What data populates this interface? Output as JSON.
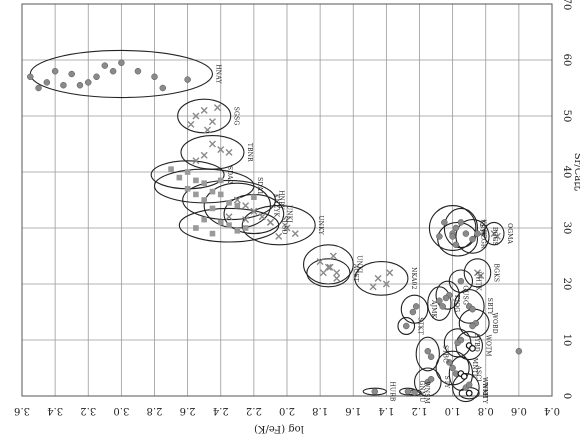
{
  "chart_data": {
    "type": "scatter",
    "title": "",
    "xlabel": "log (Fe/K)",
    "ylabel": "Sr/Ca比",
    "xlim": [
      3.6,
      0.4
    ],
    "ylim": [
      0,
      70
    ],
    "grid": true,
    "x_ticks": [
      "3.6",
      "3.4",
      "3.2",
      "3.0",
      "2.8",
      "2.6",
      "2.4",
      "2.2",
      "2.0",
      "1.8",
      "1.6",
      "1.4",
      "1.2",
      "1.0",
      "0.8",
      "0.6",
      "0.4"
    ],
    "y_ticks": [
      "0",
      "10",
      "20",
      "30",
      "40",
      "50",
      "60",
      "70"
    ],
    "groups": [
      {
        "label": "HNAY",
        "cx": 3.0,
        "cy": 57.5,
        "rx": 0.55,
        "ry": 4.2,
        "marker": "dot",
        "points": [
          [
            3.55,
            57
          ],
          [
            3.45,
            56
          ],
          [
            3.4,
            58
          ],
          [
            3.35,
            55.5
          ],
          [
            3.3,
            57.5
          ],
          [
            3.2,
            56
          ],
          [
            3.15,
            57
          ],
          [
            3.1,
            59
          ],
          [
            3.05,
            58
          ],
          [
            3.0,
            59.5
          ],
          [
            2.9,
            58
          ],
          [
            2.8,
            57
          ],
          [
            2.75,
            55
          ],
          [
            2.6,
            56.5
          ],
          [
            3.5,
            55
          ],
          [
            3.25,
            55.5
          ]
        ]
      },
      {
        "label": "SGSG",
        "cx": 2.5,
        "cy": 50.0,
        "rx": 0.16,
        "ry": 3.0,
        "marker": "x",
        "points": [
          [
            2.55,
            50
          ],
          [
            2.5,
            51
          ],
          [
            2.45,
            49
          ],
          [
            2.42,
            51.5
          ],
          [
            2.58,
            48.5
          ],
          [
            2.48,
            47.5
          ]
        ]
      },
      {
        "label": "TBNR",
        "cx": 2.45,
        "cy": 43.5,
        "rx": 0.19,
        "ry": 3.0,
        "marker": "x",
        "points": [
          [
            2.5,
            43
          ],
          [
            2.4,
            44
          ],
          [
            2.45,
            45
          ],
          [
            2.55,
            42
          ],
          [
            2.35,
            43.5
          ]
        ]
      },
      {
        "label": "SDA2",
        "cx": 2.6,
        "cy": 39.5,
        "rx": 0.22,
        "ry": 2.5,
        "marker": "square",
        "points": [
          [
            2.65,
            39
          ],
          [
            2.6,
            40
          ],
          [
            2.55,
            38.5
          ],
          [
            2.7,
            40.5
          ]
        ]
      },
      {
        "label": "SDA1",
        "cx": 2.5,
        "cy": 37.5,
        "rx": 0.3,
        "ry": 3.0,
        "marker": "square",
        "points": [
          [
            2.6,
            37
          ],
          [
            2.5,
            38
          ],
          [
            2.45,
            36.5
          ],
          [
            2.55,
            36
          ],
          [
            2.4,
            38.5
          ]
        ]
      },
      {
        "label": "HNRY",
        "cx": 2.35,
        "cy": 35.0,
        "rx": 0.28,
        "ry": 3.5,
        "marker": "square",
        "points": [
          [
            2.5,
            35
          ],
          [
            2.4,
            36
          ],
          [
            2.3,
            34
          ],
          [
            2.45,
            33.5
          ],
          [
            2.35,
            34.5
          ],
          [
            2.2,
            35.5
          ]
        ]
      },
      {
        "label": "SDSD",
        "cx": 2.35,
        "cy": 30.5,
        "rx": 0.3,
        "ry": 3.0,
        "marker": "square",
        "points": [
          [
            2.55,
            30
          ],
          [
            2.45,
            29
          ],
          [
            2.35,
            30.5
          ],
          [
            2.3,
            29.5
          ],
          [
            2.4,
            31
          ],
          [
            2.5,
            31.5
          ],
          [
            2.25,
            30
          ]
        ]
      },
      {
        "label": "KNZYK",
        "cx": 2.3,
        "cy": 34.0,
        "rx": 0.2,
        "ry": 4.0,
        "marker": "x",
        "points": [
          [
            2.3,
            35
          ],
          [
            2.25,
            34
          ],
          [
            2.2,
            33
          ],
          [
            2.35,
            32
          ]
        ]
      },
      {
        "label": "UNKJ",
        "cx": 2.2,
        "cy": 32.5,
        "rx": 0.18,
        "ry": 3.5,
        "marker": "x",
        "points": [
          [
            2.2,
            33
          ],
          [
            2.15,
            32
          ],
          [
            2.1,
            31
          ],
          [
            2.25,
            31.5
          ]
        ]
      },
      {
        "label": "UNKY",
        "cx": 2.05,
        "cy": 30.5,
        "rx": 0.22,
        "ry": 3.5,
        "marker": "x",
        "points": [
          [
            2.1,
            31
          ],
          [
            2.0,
            30
          ],
          [
            1.95,
            29
          ],
          [
            2.05,
            28.5
          ]
        ]
      },
      {
        "label": "UNKI",
        "cx": 1.75,
        "cy": 23.5,
        "rx": 0.15,
        "ry": 3.5,
        "marker": "x",
        "points": [
          [
            1.8,
            24
          ],
          [
            1.75,
            23
          ],
          [
            1.7,
            22
          ],
          [
            1.72,
            25
          ]
        ]
      },
      {
        "label": "ACST",
        "cx": 1.75,
        "cy": 22.0,
        "rx": 0.13,
        "ry": 2.5,
        "marker": "x",
        "points": [
          [
            1.78,
            22
          ],
          [
            1.7,
            21
          ],
          [
            1.74,
            23
          ]
        ]
      },
      {
        "label": "NKA02",
        "cx": 1.43,
        "cy": 21.0,
        "rx": 0.16,
        "ry": 3.0,
        "marker": "x",
        "points": [
          [
            1.45,
            21
          ],
          [
            1.4,
            20
          ],
          [
            1.38,
            22
          ],
          [
            1.48,
            19.5
          ]
        ]
      },
      {
        "label": "TSTY",
        "cx": 1.0,
        "cy": 30.0,
        "rx": 0.14,
        "ry": 4.0,
        "marker": "dot",
        "points": [
          [
            1.05,
            31
          ],
          [
            1.0,
            29
          ],
          [
            0.98,
            30
          ],
          [
            1.08,
            28.5
          ]
        ]
      },
      {
        "label": "KJNK",
        "cx": 0.95,
        "cy": 30.0,
        "rx": 0.1,
        "ry": 3.5,
        "marker": "dot",
        "points": [
          [
            0.95,
            31
          ],
          [
            0.92,
            29
          ]
        ]
      },
      {
        "label": "KZGR",
        "cx": 0.97,
        "cy": 28.0,
        "rx": 0.12,
        "ry": 3.0,
        "marker": "dot",
        "points": [
          [
            0.98,
            27
          ],
          [
            1.0,
            28.5
          ]
        ]
      },
      {
        "label": "BGGS",
        "cx": 0.88,
        "cy": 28.5,
        "rx": 0.1,
        "ry": 3.0,
        "marker": "dot",
        "points": [
          [
            0.88,
            28
          ],
          [
            0.85,
            29
          ]
        ]
      },
      {
        "label": "OGMA",
        "cx": 0.75,
        "cy": 29.0,
        "rx": 0.06,
        "ry": 2.0,
        "marker": "x",
        "points": [
          [
            0.75,
            29
          ],
          [
            0.73,
            28.5
          ]
        ]
      },
      {
        "label": "BGKS",
        "cx": 0.85,
        "cy": 22.0,
        "rx": 0.08,
        "ry": 2.5,
        "marker": "x",
        "points": [
          [
            0.85,
            22
          ],
          [
            0.83,
            21.5
          ]
        ]
      },
      {
        "label": "KJOG",
        "cx": 1.08,
        "cy": 16.5,
        "rx": 0.07,
        "ry": 3.0,
        "marker": "dot",
        "points": [
          [
            1.08,
            17
          ],
          [
            1.06,
            16
          ]
        ]
      },
      {
        "label": "GUSG",
        "cx": 1.03,
        "cy": 18.0,
        "rx": 0.07,
        "ry": 2.5,
        "marker": "dot",
        "points": [
          [
            1.02,
            18
          ],
          [
            1.04,
            17.5
          ]
        ]
      },
      {
        "label": "UHTK",
        "cx": 0.95,
        "cy": 20.5,
        "rx": 0.07,
        "ry": 2.0,
        "marker": "dot",
        "points": [
          [
            0.95,
            20.5
          ]
        ]
      },
      {
        "label": "SBTY",
        "cx": 0.9,
        "cy": 16.0,
        "rx": 0.09,
        "ry": 3.0,
        "marker": "dot",
        "points": [
          [
            0.9,
            16
          ],
          [
            0.88,
            15.5
          ]
        ]
      },
      {
        "label": "WOBD",
        "cx": 0.87,
        "cy": 13.0,
        "rx": 0.09,
        "ry": 2.5,
        "marker": "dot",
        "points": [
          [
            0.86,
            13
          ],
          [
            0.88,
            12.5
          ]
        ]
      },
      {
        "label": "STKT",
        "cx": 1.28,
        "cy": 12.5,
        "rx": 0.05,
        "ry": 1.5,
        "marker": "dot",
        "points": [
          [
            1.28,
            12.5
          ]
        ]
      },
      {
        "label": "AJMK",
        "cx": 1.23,
        "cy": 15.5,
        "rx": 0.08,
        "ry": 2.5,
        "marker": "dot",
        "points": [
          [
            1.22,
            16
          ],
          [
            1.24,
            15
          ]
        ]
      },
      {
        "label": "SYBD",
        "cx": 0.97,
        "cy": 9.5,
        "rx": 0.08,
        "ry": 2.5,
        "marker": "dot",
        "points": [
          [
            0.97,
            9.5
          ],
          [
            0.95,
            10
          ]
        ]
      },
      {
        "label": "WOTM",
        "cx": 0.9,
        "cy": 9.0,
        "rx": 0.08,
        "ry": 2.5,
        "marker": "open",
        "points": [
          [
            0.9,
            9
          ],
          [
            0.88,
            8.5
          ]
        ]
      },
      {
        "label": "STBC",
        "cx": 1.15,
        "cy": 7.5,
        "rx": 0.07,
        "ry": 3.0,
        "marker": "dot",
        "points": [
          [
            1.15,
            8
          ],
          [
            1.13,
            7
          ]
        ]
      },
      {
        "label": "MNTL",
        "cx": 1.0,
        "cy": 5.0,
        "rx": 0.1,
        "ry": 3.0,
        "marker": "dot",
        "points": [
          [
            1.0,
            5
          ],
          [
            0.98,
            4
          ],
          [
            1.02,
            6
          ]
        ]
      },
      {
        "label": "ASCI",
        "cx": 0.95,
        "cy": 4.0,
        "rx": 0.07,
        "ry": 3.0,
        "marker": "open",
        "points": [
          [
            0.95,
            4
          ],
          [
            0.93,
            3.5
          ]
        ]
      },
      {
        "label": "WNKB",
        "cx": 0.92,
        "cy": 1.5,
        "rx": 0.08,
        "ry": 2.5,
        "marker": "dot",
        "points": [
          [
            0.92,
            1.5
          ],
          [
            0.9,
            2
          ]
        ]
      },
      {
        "label": "STY",
        "cx": 1.15,
        "cy": 2.5,
        "rx": 0.08,
        "ry": 2.5,
        "marker": "dot",
        "points": [
          [
            1.15,
            2.5
          ],
          [
            1.13,
            3
          ]
        ]
      },
      {
        "label": "GNMU",
        "cx": 1.27,
        "cy": 0.8,
        "rx": 0.05,
        "ry": 0.6,
        "marker": "dot",
        "points": [
          [
            1.27,
            0.8
          ]
        ]
      },
      {
        "label": "WNSM",
        "cx": 1.23,
        "cy": 0.6,
        "rx": 0.04,
        "ry": 0.5,
        "marker": "dot",
        "points": [
          [
            1.23,
            0.6
          ]
        ]
      },
      {
        "label": "HURB",
        "cx": 1.47,
        "cy": 0.8,
        "rx": 0.07,
        "ry": 0.6,
        "marker": "dot",
        "points": [
          [
            1.47,
            0.8
          ]
        ]
      },
      {
        "label": "WMTY",
        "cx": 0.9,
        "cy": 0.5,
        "rx": 0.06,
        "ry": 1.0,
        "marker": "open",
        "points": [
          [
            0.9,
            0.5
          ]
        ]
      },
      {
        "label": "",
        "cx": 0,
        "cy": 0,
        "rx": 0,
        "ry": 0,
        "marker": "dot",
        "points": [
          [
            0.6,
            8.0
          ]
        ]
      }
    ]
  }
}
